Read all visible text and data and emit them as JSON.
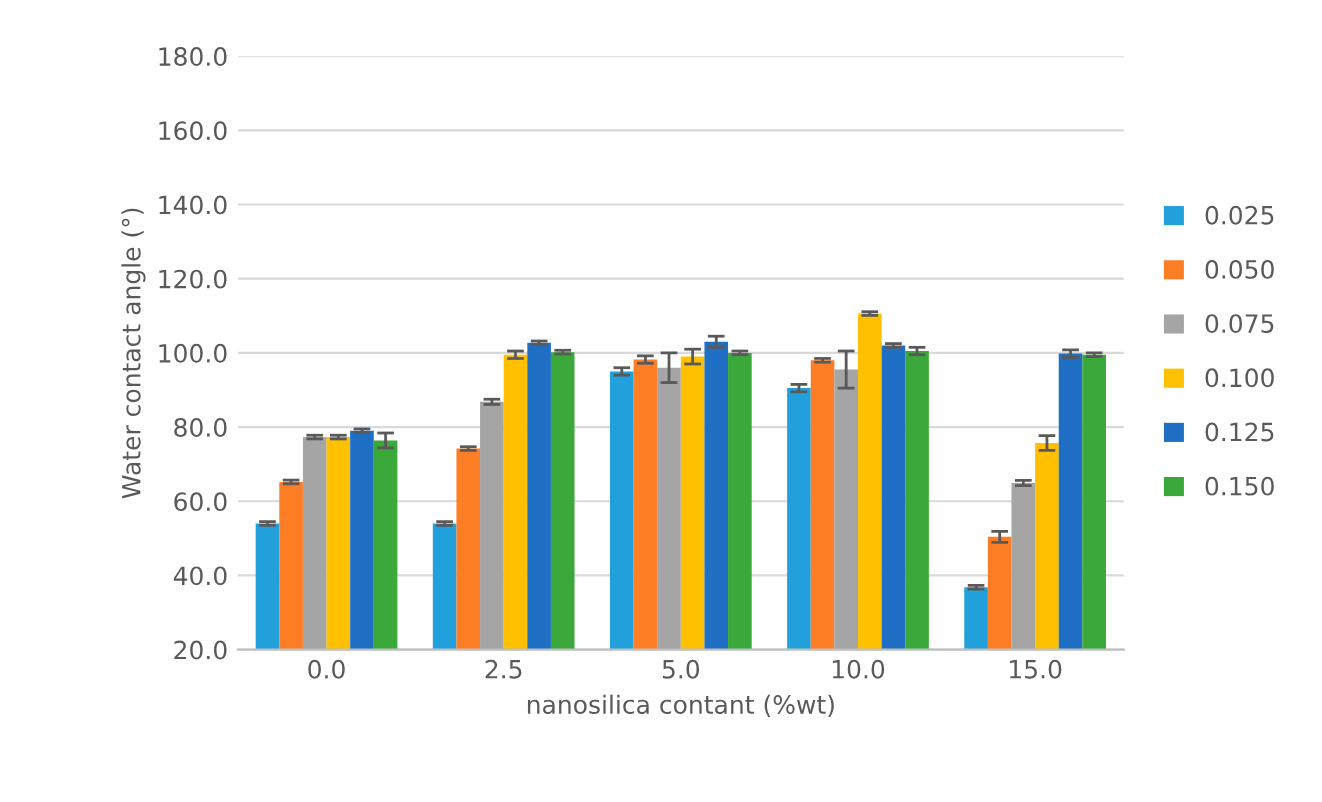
{
  "chart_data": {
    "type": "bar",
    "xlabel": "nanosilica contant (%wt)",
    "ylabel": "Water contact angle (°)",
    "categories": [
      "0.0",
      "2.5",
      "5.0",
      "10.0",
      "15.0"
    ],
    "ylim": [
      20,
      180
    ],
    "yticks": [
      {
        "value": 20,
        "label": "20.0"
      },
      {
        "value": 40,
        "label": "40.0"
      },
      {
        "value": 60,
        "label": "60.0"
      },
      {
        "value": 80,
        "label": "80.0"
      },
      {
        "value": 100,
        "label": "100.0"
      },
      {
        "value": 120,
        "label": "120.0"
      },
      {
        "value": 140,
        "label": "140.0"
      },
      {
        "value": 160,
        "label": "160.0"
      },
      {
        "value": 180,
        "label": "180.0"
      }
    ],
    "grid": "y",
    "legend": "right",
    "series": [
      {
        "name": "0.025",
        "color": "#22a0dc",
        "values": [
          54,
          54,
          95,
          90.5,
          36.8
        ],
        "errors": [
          0.5,
          0.5,
          1,
          1,
          0.5
        ]
      },
      {
        "name": "0.050",
        "color": "#fd7e24",
        "values": [
          65.2,
          74.2,
          98.2,
          98,
          50.4
        ],
        "errors": [
          0.5,
          0.5,
          1,
          0.5,
          1.5
        ]
      },
      {
        "name": "0.075",
        "color": "#a5a5a5",
        "values": [
          77.3,
          86.8,
          96,
          95.5,
          64.9
        ],
        "errors": [
          0.5,
          0.7,
          4,
          5,
          0.7
        ]
      },
      {
        "name": "0.100",
        "color": "#ffc000",
        "values": [
          77.3,
          99.5,
          99,
          110.6,
          75.7
        ],
        "errors": [
          0.5,
          1,
          2,
          0.5,
          2
        ]
      },
      {
        "name": "0.125",
        "color": "#1f6fc5",
        "values": [
          79,
          102.7,
          103,
          102,
          99.8
        ],
        "errors": [
          0.5,
          0.5,
          1.5,
          0.5,
          1
        ]
      },
      {
        "name": "0.150",
        "color": "#3aa83a",
        "values": [
          76.4,
          100.2,
          100,
          100.5,
          99.5
        ],
        "errors": [
          2,
          0.5,
          0.5,
          1,
          0.5
        ]
      }
    ]
  }
}
